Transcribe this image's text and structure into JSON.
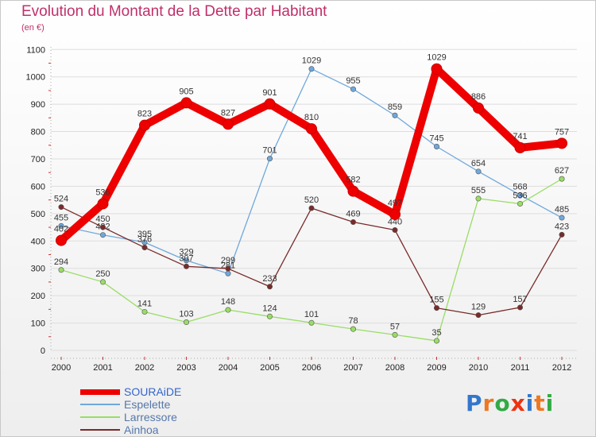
{
  "title": "Evolution du Montant de la Dette par Habitant",
  "subtitle": "(en €)",
  "logo": "Proxiti",
  "chart_data": {
    "type": "line",
    "title": "Evolution du Montant de la Dette par Habitant",
    "subtitle": "(en €)",
    "x": [
      "2000",
      "2001",
      "2002",
      "2003",
      "2004",
      "2005",
      "2006",
      "2007",
      "2008",
      "2009",
      "2010",
      "2011",
      "2012"
    ],
    "ylim": [
      0,
      1100
    ],
    "yticks": [
      0,
      100,
      200,
      300,
      400,
      500,
      600,
      700,
      800,
      900,
      1000,
      1100
    ],
    "grid": true,
    "legend_position": "bottom-left",
    "series": [
      {
        "name": "SOURAiDE",
        "color": "#ee0000",
        "values": [
          402,
          536,
          823,
          905,
          827,
          901,
          810,
          582,
          497,
          1029,
          886,
          741,
          757
        ]
      },
      {
        "name": "Espelette",
        "color": "#6fa8dc",
        "values": [
          455,
          422,
          395,
          329,
          281,
          701,
          1029,
          955,
          859,
          745,
          654,
          568,
          485
        ]
      },
      {
        "name": "Larressore",
        "color": "#99dd66",
        "values": [
          294,
          250,
          141,
          103,
          148,
          124,
          101,
          78,
          57,
          35,
          555,
          536,
          627
        ]
      },
      {
        "name": "Ainhoa",
        "color": "#7a2a2a",
        "values": [
          524,
          450,
          376,
          307,
          299,
          233,
          520,
          469,
          440,
          155,
          129,
          157,
          423
        ]
      }
    ]
  }
}
